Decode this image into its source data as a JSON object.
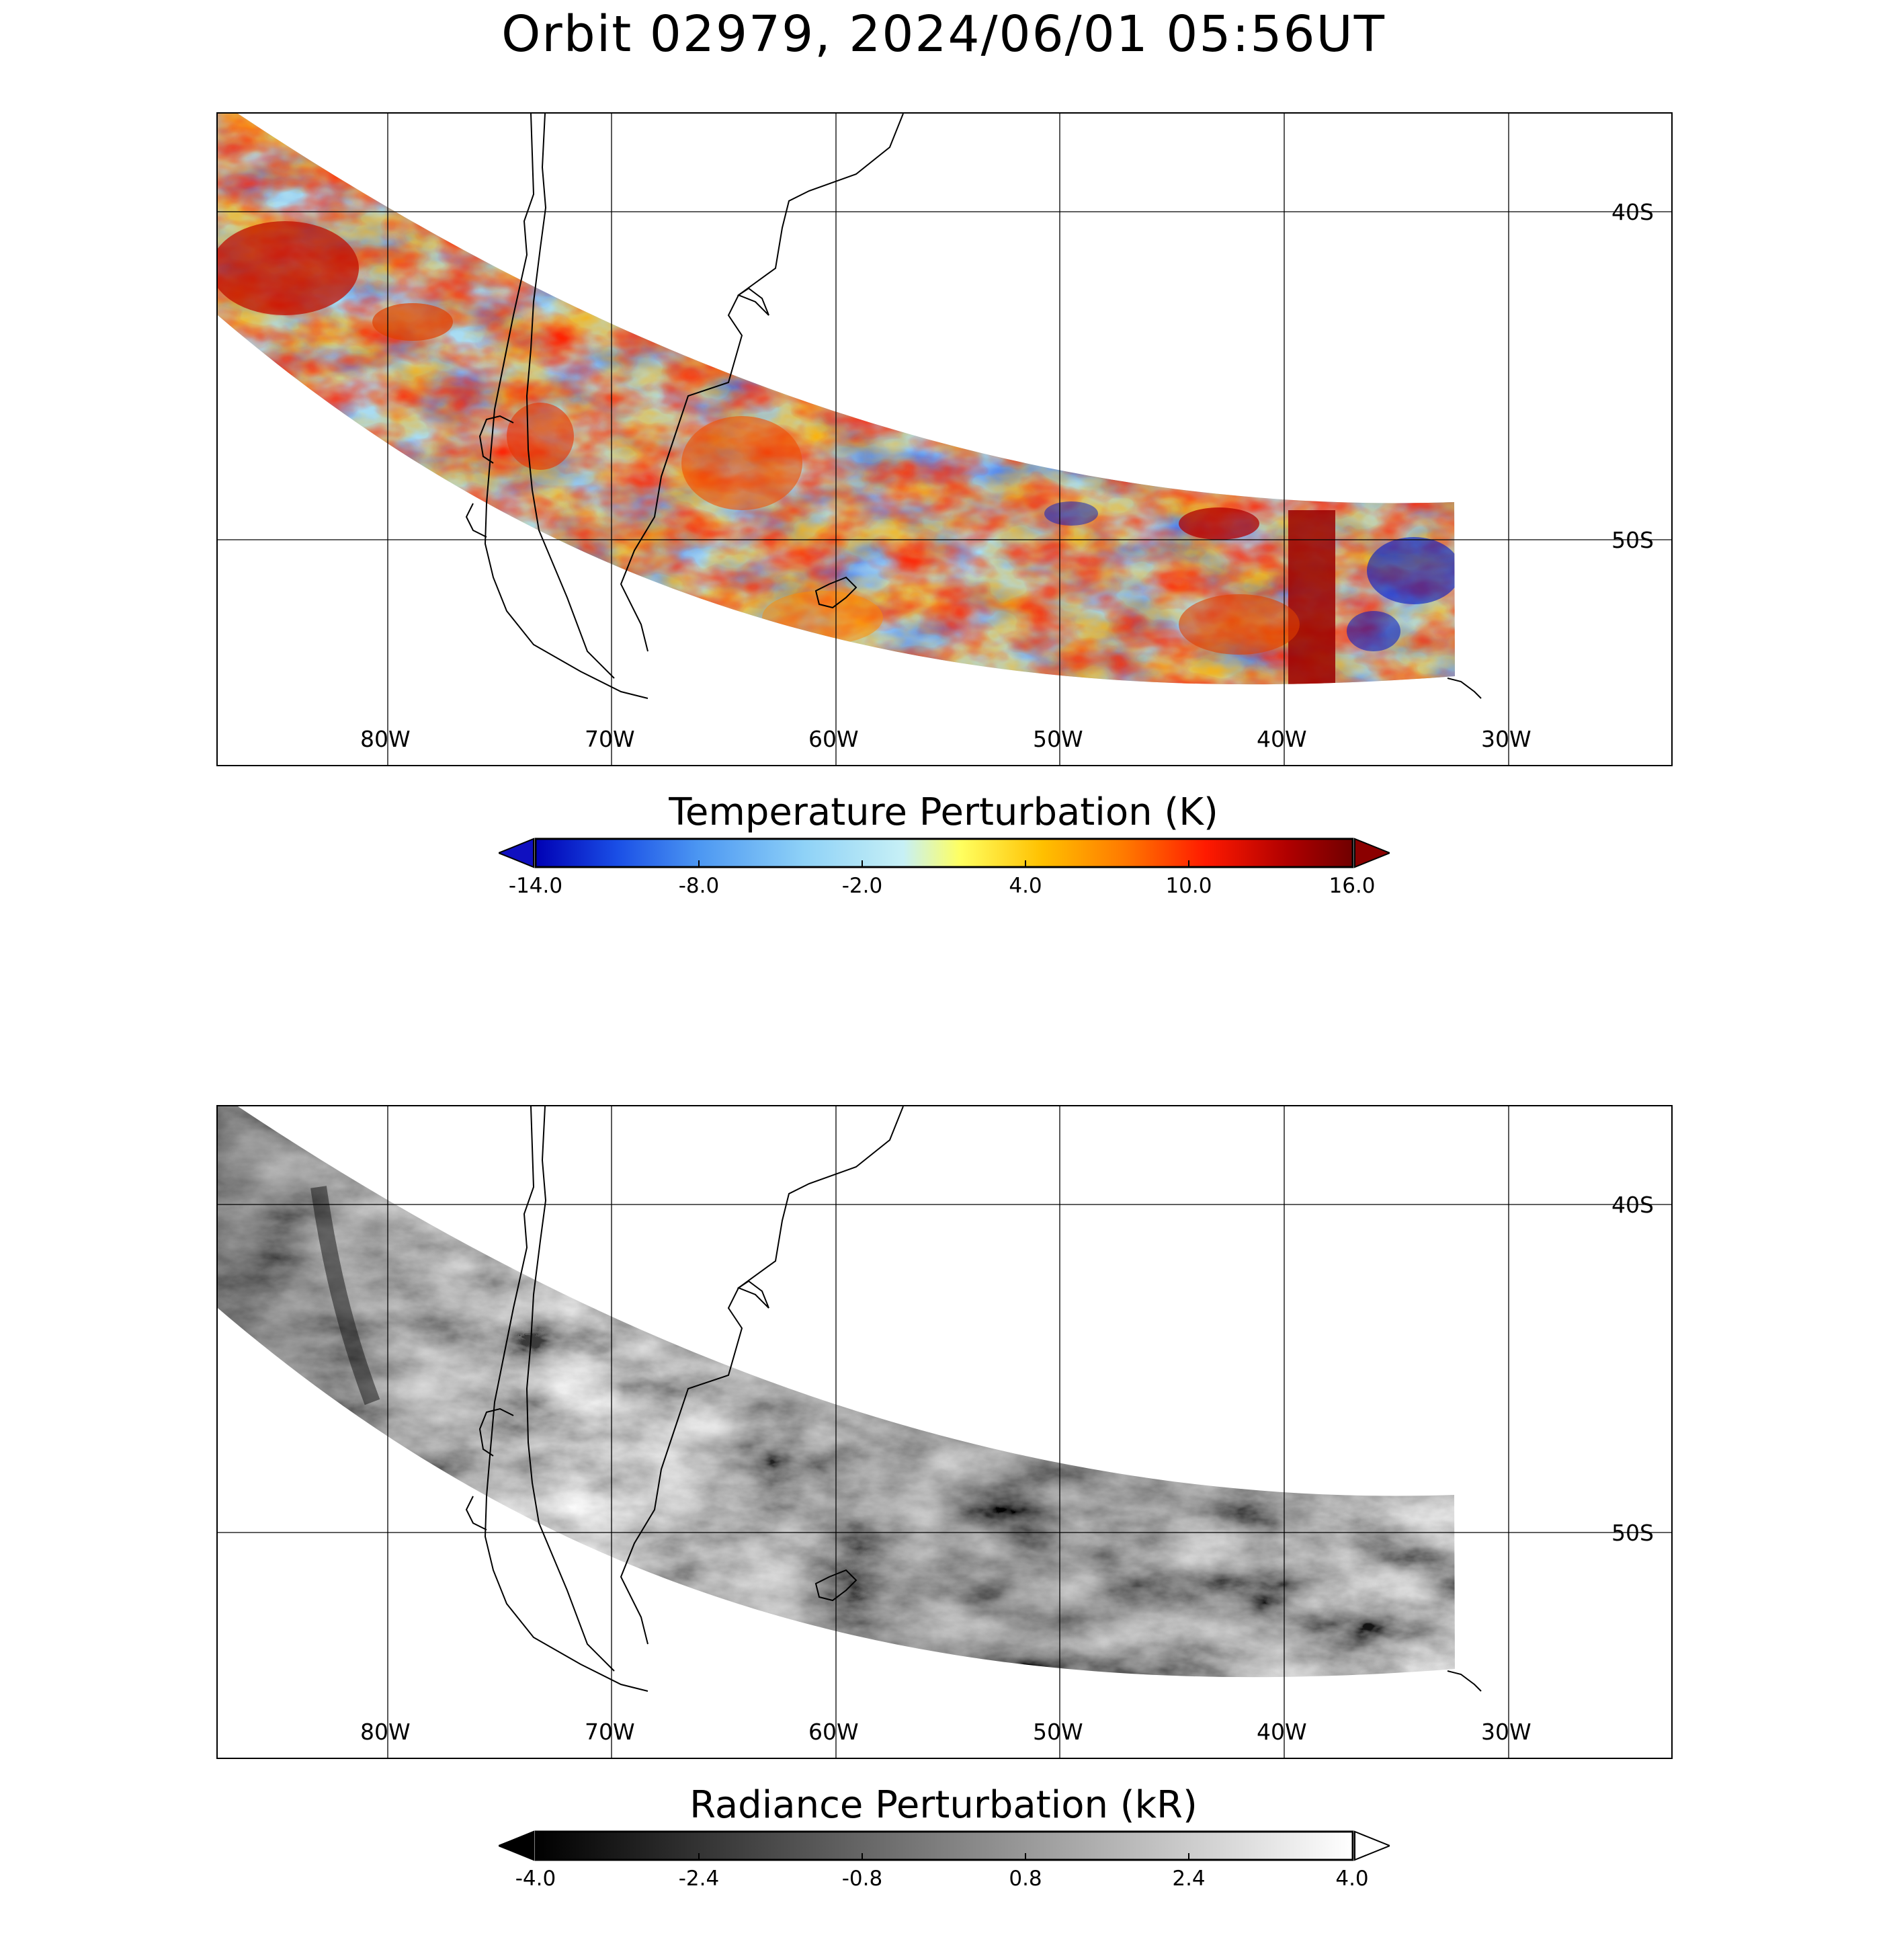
{
  "figure_title": "Orbit 02979, 2024/06/01 05:56UT",
  "map": {
    "lon_labels": [
      "80W",
      "70W",
      "60W",
      "50W",
      "40W",
      "30W"
    ],
    "lat_labels": [
      "40S",
      "50S"
    ]
  },
  "panels": [
    {
      "id": "temperature",
      "colorbar_title": "Temperature Perturbation (K)",
      "colorbar_ticks": [
        "-14.0",
        "-8.0",
        "-2.0",
        "4.0",
        "10.0",
        "16.0"
      ],
      "colormap": [
        "#0000b4",
        "#1a4fe6",
        "#4c97f2",
        "#8fd2f7",
        "#c7f0f6",
        "#ffff60",
        "#ffc000",
        "#ff7a00",
        "#ff1a00",
        "#b00000",
        "#700000"
      ],
      "under_color": "#0000b4",
      "over_color": "#8b0000"
    },
    {
      "id": "radiance",
      "colorbar_title": "Radiance Perturbation (kR)",
      "colorbar_ticks": [
        "-4.0",
        "-2.4",
        "-0.8",
        "0.8",
        "2.4",
        "4.0"
      ],
      "colormap": [
        "#000000",
        "#ffffff"
      ],
      "under_color": "#000000",
      "over_color": "#ffffff"
    }
  ]
}
